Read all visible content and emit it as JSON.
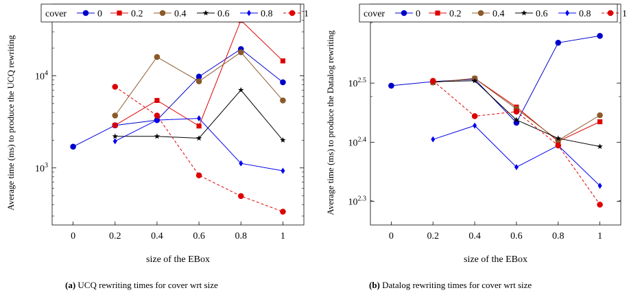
{
  "chart_data": [
    {
      "type": "line",
      "yscale": "log",
      "xlabel": "size of the EBox",
      "ylabel": "Average time (ms) to produce the UCQ rewriting",
      "x": [
        0,
        0.2,
        0.4,
        0.6,
        0.8,
        1
      ],
      "xticks": [
        "0",
        "0.2",
        "0.4",
        "0.6",
        "0.8",
        "1"
      ],
      "xlim": [
        -0.1,
        1.1
      ],
      "ylim": [
        240,
        60000
      ],
      "yticks": [
        {
          "value": 1000,
          "base": "10",
          "exp": "3"
        },
        {
          "value": 10000,
          "base": "10",
          "exp": "4"
        }
      ],
      "legend_title": "cover",
      "legend_position": "top",
      "series": [
        {
          "name": "0",
          "color": "#0000cc",
          "dash": false,
          "marker": "circle",
          "values": [
            1700,
            2900,
            3300,
            9800,
            19500,
            8500
          ]
        },
        {
          "name": "0.2",
          "color": "#dd0000",
          "dash": false,
          "marker": "square",
          "values": [
            null,
            2900,
            5400,
            2850,
            40000,
            14500
          ]
        },
        {
          "name": "0.4",
          "color": "#8b5a2b",
          "dash": false,
          "marker": "circle",
          "values": [
            null,
            3700,
            16000,
            8700,
            18000,
            5400
          ]
        },
        {
          "name": "0.6",
          "color": "#000000",
          "dash": false,
          "marker": "star",
          "values": [
            null,
            2200,
            2200,
            2100,
            7000,
            2000
          ]
        },
        {
          "name": "0.8",
          "color": "#0000ee",
          "dash": false,
          "marker": "diamond",
          "values": [
            null,
            1950,
            3300,
            3450,
            1120,
            930
          ]
        },
        {
          "name": "1",
          "color": "#dd0000",
          "dash": true,
          "marker": "circle",
          "values": [
            null,
            7600,
            3700,
            830,
            495,
            335
          ]
        }
      ],
      "caption_prefix": "(a)",
      "caption_text": "UCQ rewriting times for cover wrt size"
    },
    {
      "type": "line",
      "yscale": "log",
      "xlabel": "size of the EBox",
      "ylabel": "Average time (ms) to produce the Datalog rewriting",
      "x": [
        0,
        0.2,
        0.4,
        0.6,
        0.8,
        1
      ],
      "xticks": [
        "0",
        "0.2",
        "0.4",
        "0.6",
        "0.8",
        "1"
      ],
      "xlim": [
        -0.1,
        1.1
      ],
      "ylim": [
        182,
        430
      ],
      "yticks": [
        {
          "value": 199.5,
          "base": "10",
          "exp": "2.3"
        },
        {
          "value": 251.2,
          "base": "10",
          "exp": "2.4"
        },
        {
          "value": 316.2,
          "base": "10",
          "exp": "2.5"
        }
      ],
      "legend_title": "cover",
      "legend_position": "top",
      "series": [
        {
          "name": "0",
          "color": "#0000cc",
          "dash": false,
          "marker": "circle",
          "values": [
            313,
            318,
            321,
            271,
            370,
            380
          ]
        },
        {
          "name": "0.2",
          "color": "#dd0000",
          "dash": false,
          "marker": "square",
          "values": [
            null,
            317,
            322,
            288,
            252,
            272
          ]
        },
        {
          "name": "0.4",
          "color": "#8b5a2b",
          "dash": false,
          "marker": "circle",
          "values": [
            null,
            317,
            322,
            286,
            253,
            279
          ]
        },
        {
          "name": "0.6",
          "color": "#000000",
          "dash": false,
          "marker": "star",
          "values": [
            null,
            318,
            319,
            274,
            255,
            247
          ]
        },
        {
          "name": "0.8",
          "color": "#0000ee",
          "dash": false,
          "marker": "diamond",
          "values": [
            null,
            254,
            268,
            228,
            248,
            212
          ]
        },
        {
          "name": "1",
          "color": "#dd0000",
          "dash": true,
          "marker": "circle",
          "values": [
            null,
            319,
            278,
            283,
            248,
            197
          ]
        }
      ],
      "caption_prefix": "(b)",
      "caption_text": "Datalog rewriting times for cover wrt size"
    }
  ]
}
